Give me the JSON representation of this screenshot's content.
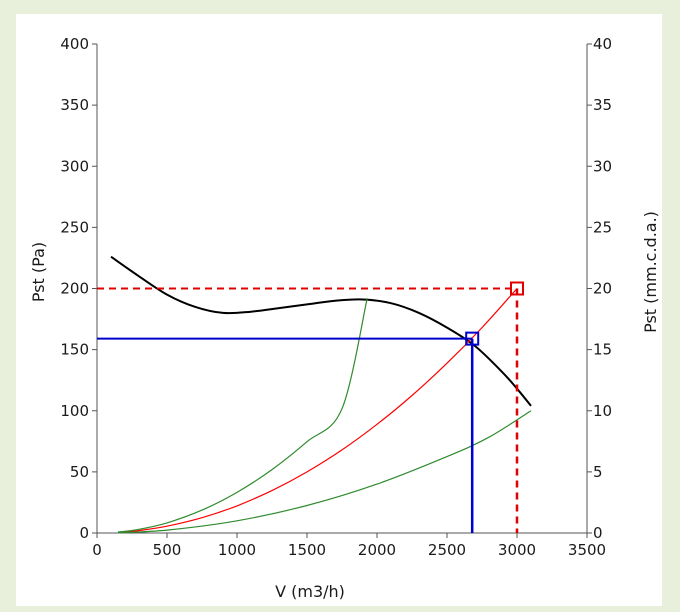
{
  "chart_data": {
    "type": "line",
    "xlabel": "V (m3/h)",
    "ylabel": "Pst (Pa)",
    "y2label": "Pst (mm.c.d.a.)",
    "xlim": [
      0,
      3500
    ],
    "ylim": [
      0,
      400
    ],
    "y2lim": [
      0,
      40
    ],
    "x_ticks": [
      "0",
      "500",
      "1000",
      "1500",
      "2000",
      "2500",
      "3000",
      "3500"
    ],
    "y_ticks": [
      "0",
      "50",
      "100",
      "150",
      "200",
      "250",
      "300",
      "350",
      "400"
    ],
    "y2_ticks": [
      "0",
      "5",
      "10",
      "15",
      "20",
      "25",
      "30",
      "35",
      "40"
    ],
    "grid": false,
    "legend": "none",
    "series": [
      {
        "color": "#000000",
        "points": [
          [
            100,
            226
          ],
          [
            300,
            210
          ],
          [
            500,
            195
          ],
          [
            700,
            185
          ],
          [
            900,
            180
          ],
          [
            1100,
            181
          ],
          [
            1300,
            184
          ],
          [
            1500,
            187
          ],
          [
            1700,
            190
          ],
          [
            1900,
            191
          ],
          [
            2100,
            188
          ],
          [
            2300,
            180
          ],
          [
            2500,
            168
          ],
          [
            2700,
            153
          ],
          [
            2900,
            131
          ],
          [
            3000,
            118
          ],
          [
            3100,
            104
          ]
        ]
      },
      {
        "color": "#ff0000",
        "points": [
          [
            150,
            0.5
          ],
          [
            300,
            2
          ],
          [
            500,
            5.6
          ],
          [
            750,
            12.5
          ],
          [
            1000,
            22.2
          ],
          [
            1250,
            34.7
          ],
          [
            1500,
            50
          ],
          [
            1750,
            68
          ],
          [
            2000,
            88.9
          ],
          [
            2250,
            112.5
          ],
          [
            2500,
            138.9
          ],
          [
            2750,
            168
          ],
          [
            3000,
            200
          ]
        ]
      },
      {
        "color": "#2e8b2e",
        "points": [
          [
            150,
            0.8
          ],
          [
            300,
            3
          ],
          [
            500,
            8.3
          ],
          [
            750,
            18.7
          ],
          [
            1000,
            33.2
          ],
          [
            1250,
            51.9
          ],
          [
            1500,
            74.7
          ],
          [
            1750,
            101.7
          ],
          [
            1930,
            192
          ]
        ]
      },
      {
        "color": "#2e8b2e",
        "points": [
          [
            150,
            0.2
          ],
          [
            500,
            2.4
          ],
          [
            1000,
            10
          ],
          [
            1500,
            22.5
          ],
          [
            2000,
            40
          ],
          [
            2500,
            62.5
          ],
          [
            2800,
            78.4
          ],
          [
            3100,
            100
          ]
        ]
      }
    ],
    "reference_lines": [
      {
        "color": "#0000cc",
        "style": "solid",
        "x": 2680,
        "y": 159
      },
      {
        "color": "#e00000",
        "style": "dashed",
        "x": 3000,
        "y": 200
      }
    ],
    "markers": [
      {
        "color": "#0000cc",
        "x": 2680,
        "y": 159
      },
      {
        "color": "#e00000",
        "x": 3000,
        "y": 200
      }
    ]
  }
}
